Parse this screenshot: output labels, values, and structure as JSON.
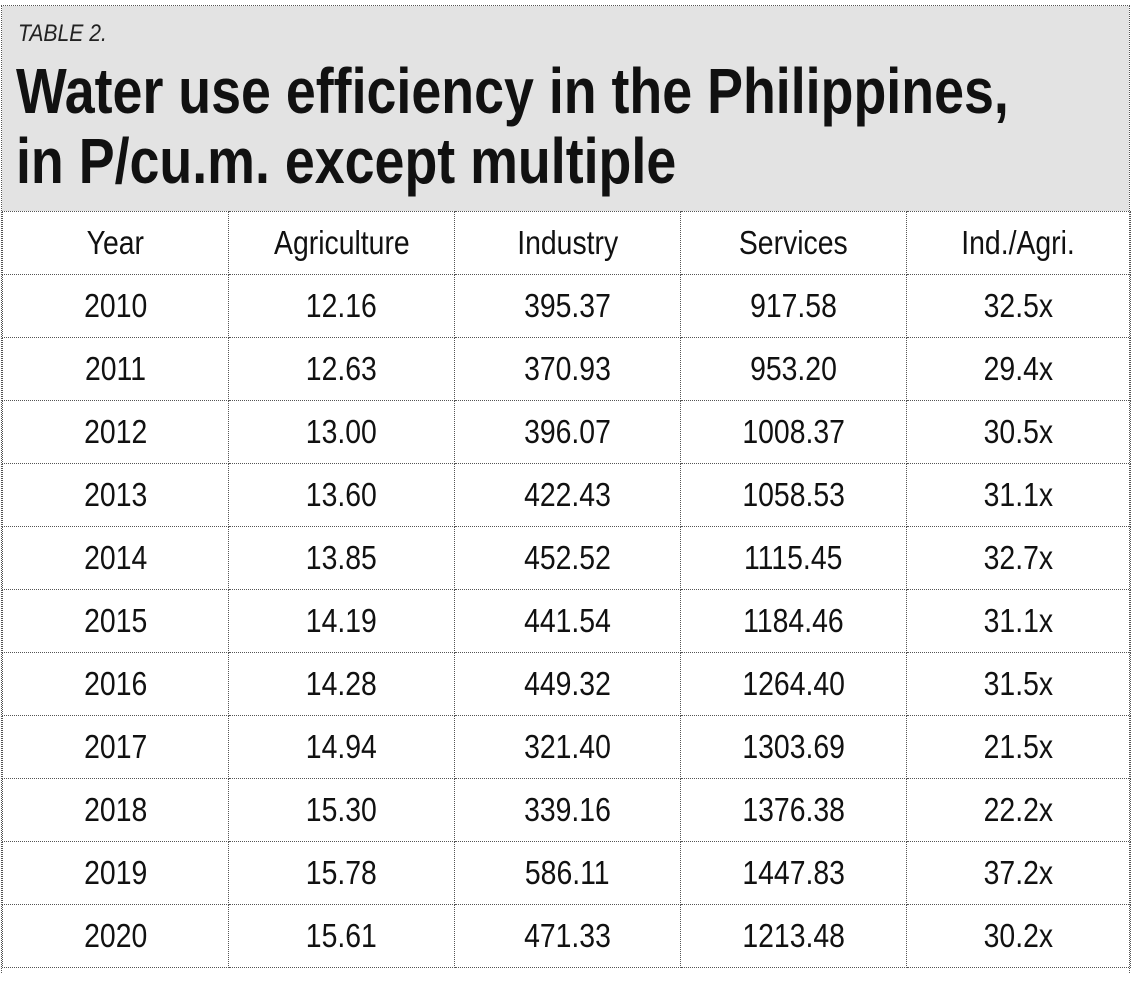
{
  "table_label": "TABLE 2.",
  "title_line1": "Water use efficiency in the Philippines,",
  "title_line2": "in P/cu.m. except multiple",
  "columns": [
    "Year",
    "Agriculture",
    "Industry",
    "Services",
    "Ind./Agri."
  ],
  "rows": [
    [
      "2010",
      "12.16",
      "395.37",
      "917.58",
      "32.5x"
    ],
    [
      "2011",
      "12.63",
      "370.93",
      "953.20",
      "29.4x"
    ],
    [
      "2012",
      "13.00",
      "396.07",
      "1008.37",
      "30.5x"
    ],
    [
      "2013",
      "13.60",
      "422.43",
      "1058.53",
      "31.1x"
    ],
    [
      "2014",
      "13.85",
      "452.52",
      "1115.45",
      "32.7x"
    ],
    [
      "2015",
      "14.19",
      "441.54",
      "1184.46",
      "31.1x"
    ],
    [
      "2016",
      "14.28",
      "449.32",
      "1264.40",
      "31.5x"
    ],
    [
      "2017",
      "14.94",
      "321.40",
      "1303.69",
      "21.5x"
    ],
    [
      "2018",
      "15.30",
      "339.16",
      "1376.38",
      "22.2x"
    ],
    [
      "2019",
      "15.78",
      "586.11",
      "1447.83",
      "37.2x"
    ],
    [
      "2020",
      "15.61",
      "471.33",
      "1213.48",
      "30.2x"
    ]
  ],
  "colors": {
    "header_background": "#e3e3e3",
    "text": "#111111",
    "grid_lines": "#555555"
  }
}
